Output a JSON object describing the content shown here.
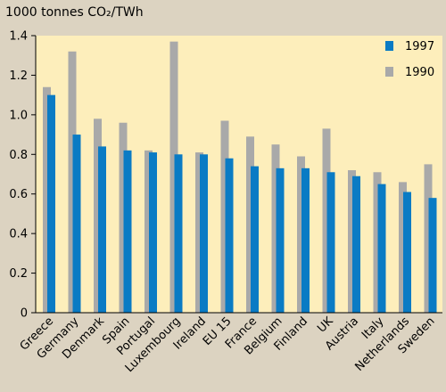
{
  "chart_data": {
    "type": "bar",
    "ylabel": "1000 tonnes CO₂/TWh",
    "ylim": [
      0,
      1.4
    ],
    "yticks": [
      "0",
      "0.2",
      "0.4",
      "0.6",
      "0.8",
      "1.0",
      "1.2",
      "1.4"
    ],
    "grid": false,
    "legend_position": "top-right",
    "categories": [
      "Greece",
      "Germany",
      "Denmark",
      "Spain",
      "Portugal",
      "Luxembourg",
      "Ireland",
      "EU 15",
      "France",
      "Belgium",
      "Finland",
      "UK",
      "Austria",
      "Italy",
      "Netherlands",
      "Sweden"
    ],
    "series": [
      {
        "name": "1997",
        "color": "#0a7bc4",
        "values": [
          1.1,
          0.9,
          0.84,
          0.82,
          0.81,
          0.8,
          0.8,
          0.78,
          0.74,
          0.73,
          0.73,
          0.71,
          0.69,
          0.65,
          0.61,
          0.58
        ]
      },
      {
        "name": "1990",
        "color": "#a9a9a9",
        "values": [
          1.14,
          1.32,
          0.98,
          0.96,
          0.82,
          1.37,
          0.81,
          0.97,
          0.89,
          0.85,
          0.79,
          0.93,
          0.72,
          0.71,
          0.66,
          0.75
        ]
      }
    ],
    "colors": {
      "page_background": "#dcd3c1",
      "plot_background": "#fdeebb",
      "axis": "#000000"
    }
  }
}
